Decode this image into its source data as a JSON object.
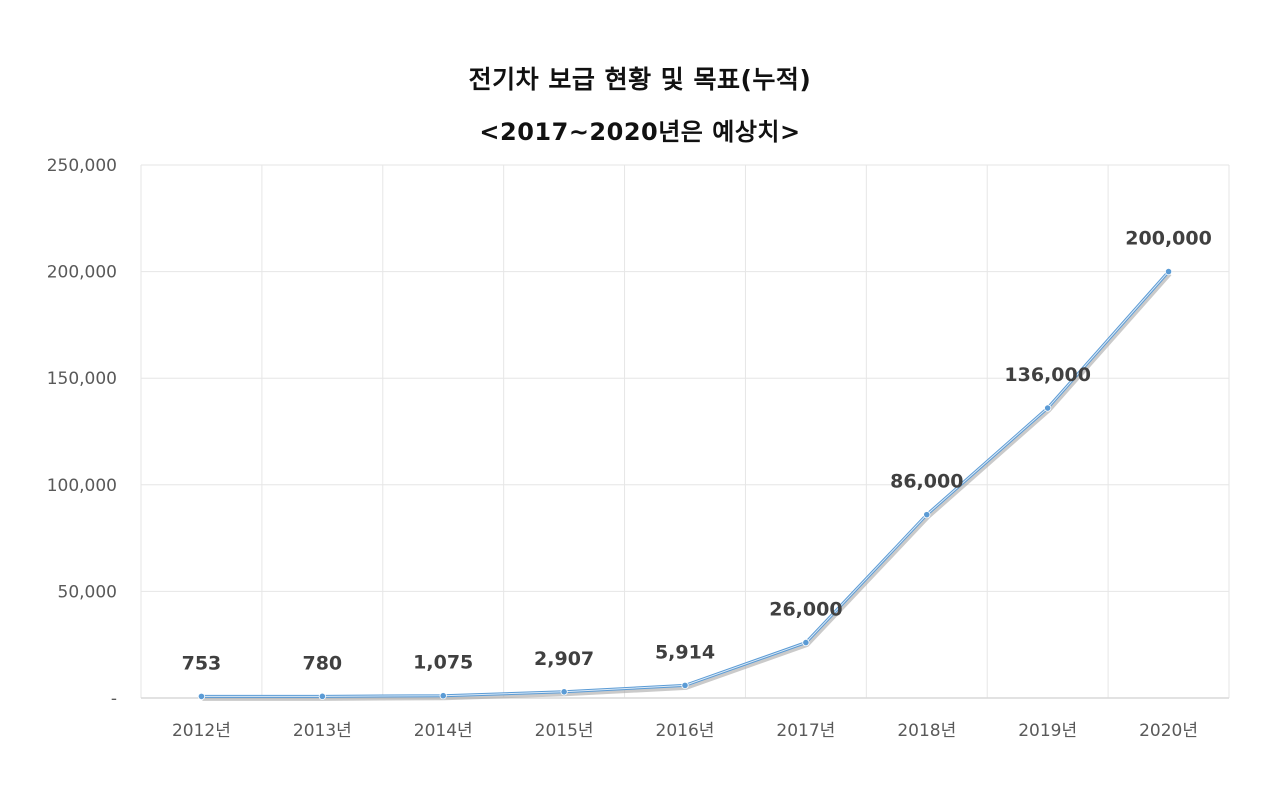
{
  "chart_data": {
    "type": "line",
    "title": "전기차 보급 현황 및 목표(누적)",
    "subtitle": "<2017~2020년은 예상치>",
    "categories": [
      "2012년",
      "2013년",
      "2014년",
      "2015년",
      "2016년",
      "2017년",
      "2018년",
      "2019년",
      "2020년"
    ],
    "values": [
      753,
      780,
      1075,
      2907,
      5914,
      26000,
      86000,
      136000,
      200000
    ],
    "data_labels": [
      "753",
      "780",
      "1,075",
      "2,907",
      "5,914",
      "26,000",
      "86,000",
      "136,000",
      "200,000"
    ],
    "ylim": [
      0,
      250000
    ],
    "yticks": [
      "-",
      "50,000",
      "100,000",
      "150,000",
      "200,000",
      "250,000"
    ],
    "grid": true,
    "legend": "none",
    "colors": {
      "line": "#5b9bd5",
      "line_shadow": "#a6a6a6",
      "grid": "#e6e6e6",
      "axis": "#d9d9d9",
      "text": "#595959",
      "label": "#404040"
    }
  }
}
